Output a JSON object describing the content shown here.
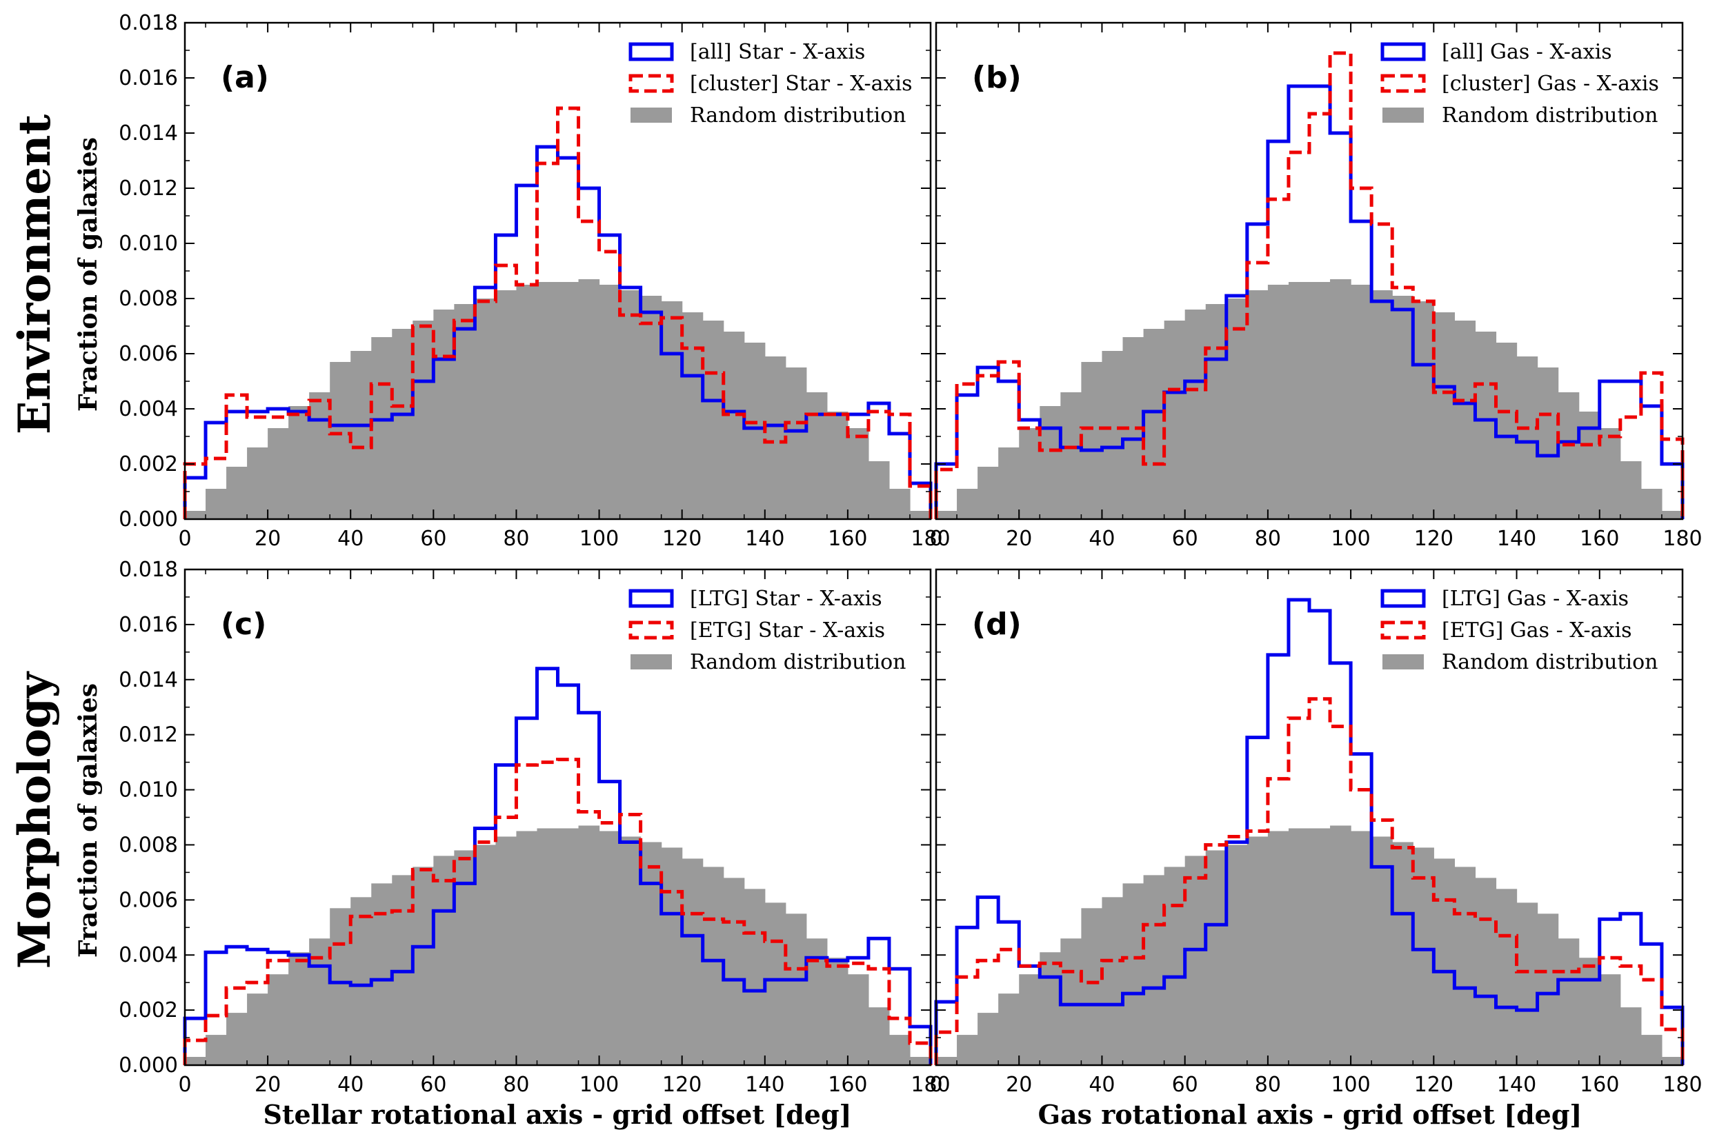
{
  "figure": {
    "row_labels": [
      "Environment",
      "Morphology"
    ],
    "y_label": "Fraction of galaxies",
    "x_labels": [
      "Stellar rotational axis - grid offset [deg]",
      "Gas rotational axis - grid offset [deg]"
    ]
  },
  "colors": {
    "blue": "#0000ee",
    "red": "#ee0000",
    "random": "#9a9a9a"
  },
  "chart_data": [
    {
      "type": "bar",
      "panel": "(a)",
      "xlim": [
        0,
        180
      ],
      "ylim": [
        0,
        0.018
      ],
      "x_ticks": [
        "0",
        "20",
        "40",
        "60",
        "80",
        "100",
        "120",
        "140",
        "160",
        "180"
      ],
      "y_ticks": [
        "0.000",
        "0.002",
        "0.004",
        "0.006",
        "0.008",
        "0.010",
        "0.012",
        "0.014",
        "0.016",
        "0.018"
      ],
      "bin_width": 5,
      "legend_position": "top-right",
      "series": [
        {
          "name": "[all] Star - X-axis",
          "style": "step-solid",
          "color": "#0000ee",
          "values": [
            0.0015,
            0.0035,
            0.0039,
            0.0039,
            0.004,
            0.0039,
            0.0036,
            0.0034,
            0.0034,
            0.0036,
            0.0038,
            0.005,
            0.0058,
            0.0069,
            0.0084,
            0.0103,
            0.0121,
            0.0135,
            0.0131,
            0.012,
            0.0103,
            0.0084,
            0.0075,
            0.006,
            0.0052,
            0.0043,
            0.0039,
            0.0033,
            0.0034,
            0.0032,
            0.0038,
            0.0038,
            0.0038,
            0.0042,
            0.0031,
            0.0013
          ]
        },
        {
          "name": "[cluster] Star - X-axis",
          "style": "step-dashed",
          "color": "#ee0000",
          "values": [
            0.002,
            0.0022,
            0.0045,
            0.0037,
            0.0037,
            0.0038,
            0.0043,
            0.0031,
            0.0026,
            0.0049,
            0.0041,
            0.007,
            0.0059,
            0.0072,
            0.0079,
            0.0092,
            0.0085,
            0.0129,
            0.0149,
            0.0108,
            0.0097,
            0.0074,
            0.0071,
            0.0073,
            0.0062,
            0.0053,
            0.0038,
            0.0035,
            0.0028,
            0.0035,
            0.0038,
            0.0038,
            0.003,
            0.0039,
            0.0038,
            0.0012
          ]
        },
        {
          "name": "Random distribution",
          "style": "filled",
          "color": "#9a9a9a",
          "values": [
            0.0003,
            0.0011,
            0.0019,
            0.0026,
            0.0033,
            0.0041,
            0.0046,
            0.0057,
            0.0061,
            0.0066,
            0.0069,
            0.0072,
            0.0076,
            0.0078,
            0.008,
            0.0083,
            0.0085,
            0.0086,
            0.0086,
            0.0087,
            0.0085,
            0.0083,
            0.0081,
            0.0079,
            0.0075,
            0.0072,
            0.0068,
            0.0064,
            0.0059,
            0.0055,
            0.0046,
            0.0039,
            0.0033,
            0.0021,
            0.0011,
            0.0003
          ]
        }
      ]
    },
    {
      "type": "bar",
      "panel": "(b)",
      "xlim": [
        0,
        180
      ],
      "ylim": [
        0,
        0.018
      ],
      "x_ticks": [
        "0",
        "20",
        "40",
        "60",
        "80",
        "100",
        "120",
        "140",
        "160",
        "180"
      ],
      "y_ticks": [],
      "bin_width": 5,
      "legend_position": "top-right",
      "series": [
        {
          "name": "[all] Gas - X-axis",
          "style": "step-solid",
          "color": "#0000ee",
          "values": [
            0.002,
            0.0045,
            0.0055,
            0.005,
            0.0036,
            0.0033,
            0.0026,
            0.0025,
            0.0026,
            0.0029,
            0.0039,
            0.0046,
            0.005,
            0.0058,
            0.0081,
            0.0107,
            0.0137,
            0.0157,
            0.0157,
            0.014,
            0.0108,
            0.0079,
            0.0076,
            0.0056,
            0.0048,
            0.0042,
            0.0036,
            0.003,
            0.0028,
            0.0023,
            0.0028,
            0.0033,
            0.005,
            0.005,
            0.0041,
            0.002
          ]
        },
        {
          "name": "[cluster] Gas - X-axis",
          "style": "step-dashed",
          "color": "#ee0000",
          "values": [
            0.0018,
            0.0049,
            0.0052,
            0.0057,
            0.0033,
            0.0025,
            0.0026,
            0.0033,
            0.0033,
            0.0033,
            0.002,
            0.0047,
            0.0047,
            0.0062,
            0.0069,
            0.0093,
            0.0116,
            0.0133,
            0.0147,
            0.0169,
            0.012,
            0.0107,
            0.0084,
            0.0079,
            0.0046,
            0.0043,
            0.0049,
            0.0039,
            0.0033,
            0.0038,
            0.0027,
            0.0027,
            0.003,
            0.0037,
            0.0053,
            0.0029
          ]
        },
        {
          "name": "Random distribution",
          "style": "filled",
          "color": "#9a9a9a",
          "values": [
            0.0003,
            0.0011,
            0.0019,
            0.0026,
            0.0033,
            0.0041,
            0.0046,
            0.0057,
            0.0061,
            0.0066,
            0.0069,
            0.0072,
            0.0076,
            0.0078,
            0.008,
            0.0083,
            0.0085,
            0.0086,
            0.0086,
            0.0087,
            0.0085,
            0.0083,
            0.0081,
            0.0079,
            0.0075,
            0.0072,
            0.0068,
            0.0064,
            0.0059,
            0.0055,
            0.0046,
            0.0039,
            0.0033,
            0.0021,
            0.0011,
            0.0003
          ]
        }
      ]
    },
    {
      "type": "bar",
      "panel": "(c)",
      "xlim": [
        0,
        180
      ],
      "ylim": [
        0,
        0.018
      ],
      "x_ticks": [
        "0",
        "20",
        "40",
        "60",
        "80",
        "100",
        "120",
        "140",
        "160",
        "180"
      ],
      "y_ticks": [
        "0.000",
        "0.002",
        "0.004",
        "0.006",
        "0.008",
        "0.010",
        "0.012",
        "0.014",
        "0.016",
        "0.018"
      ],
      "bin_width": 5,
      "legend_position": "top-right",
      "series": [
        {
          "name": "[LTG] Star - X-axis",
          "style": "step-solid",
          "color": "#0000ee",
          "values": [
            0.0017,
            0.0041,
            0.0043,
            0.0042,
            0.0041,
            0.004,
            0.0036,
            0.003,
            0.0029,
            0.0031,
            0.0034,
            0.0043,
            0.0056,
            0.0066,
            0.0086,
            0.0109,
            0.0126,
            0.0144,
            0.0138,
            0.0128,
            0.0103,
            0.0081,
            0.0066,
            0.0055,
            0.0047,
            0.0038,
            0.0031,
            0.0027,
            0.0031,
            0.0031,
            0.0039,
            0.0038,
            0.0039,
            0.0046,
            0.0035,
            0.0014
          ]
        },
        {
          "name": "[ETG] Star - X-axis",
          "style": "step-dashed",
          "color": "#ee0000",
          "values": [
            0.0009,
            0.0018,
            0.0028,
            0.003,
            0.0038,
            0.0038,
            0.0039,
            0.0044,
            0.0054,
            0.0055,
            0.0056,
            0.0071,
            0.0067,
            0.0075,
            0.0081,
            0.009,
            0.0109,
            0.011,
            0.0111,
            0.0092,
            0.0088,
            0.0091,
            0.0072,
            0.0063,
            0.0055,
            0.0053,
            0.0052,
            0.0048,
            0.0045,
            0.0035,
            0.0038,
            0.0036,
            0.0037,
            0.0035,
            0.0017,
            0.0008
          ]
        },
        {
          "name": "Random distribution",
          "style": "filled",
          "color": "#9a9a9a",
          "values": [
            0.0003,
            0.0011,
            0.0019,
            0.0026,
            0.0033,
            0.0041,
            0.0046,
            0.0057,
            0.0061,
            0.0066,
            0.0069,
            0.0072,
            0.0076,
            0.0078,
            0.008,
            0.0083,
            0.0085,
            0.0086,
            0.0086,
            0.0087,
            0.0085,
            0.0083,
            0.0081,
            0.0079,
            0.0075,
            0.0072,
            0.0068,
            0.0064,
            0.0059,
            0.0055,
            0.0046,
            0.0039,
            0.0033,
            0.0021,
            0.0011,
            0.0003
          ]
        }
      ]
    },
    {
      "type": "bar",
      "panel": "(d)",
      "xlim": [
        0,
        180
      ],
      "ylim": [
        0,
        0.018
      ],
      "x_ticks": [
        "0",
        "20",
        "40",
        "60",
        "80",
        "100",
        "120",
        "140",
        "160",
        "180"
      ],
      "y_ticks": [],
      "bin_width": 5,
      "legend_position": "top-right",
      "series": [
        {
          "name": "[LTG] Gas - X-axis",
          "style": "step-solid",
          "color": "#0000ee",
          "values": [
            0.0023,
            0.005,
            0.0061,
            0.0052,
            0.0036,
            0.0032,
            0.0022,
            0.0022,
            0.0022,
            0.0026,
            0.0028,
            0.0032,
            0.0042,
            0.0051,
            0.0081,
            0.0119,
            0.0149,
            0.0169,
            0.0165,
            0.0146,
            0.0113,
            0.0072,
            0.0055,
            0.0042,
            0.0034,
            0.0028,
            0.0025,
            0.0021,
            0.002,
            0.0026,
            0.0031,
            0.0031,
            0.0053,
            0.0055,
            0.0044,
            0.0021
          ]
        },
        {
          "name": "[ETG] Gas - X-axis",
          "style": "step-dashed",
          "color": "#ee0000",
          "values": [
            0.0012,
            0.0032,
            0.0038,
            0.0042,
            0.0036,
            0.0037,
            0.0034,
            0.003,
            0.0038,
            0.0039,
            0.0051,
            0.0058,
            0.0068,
            0.008,
            0.0083,
            0.0085,
            0.0104,
            0.0126,
            0.0133,
            0.0123,
            0.01,
            0.0089,
            0.0079,
            0.0068,
            0.006,
            0.0055,
            0.0053,
            0.0047,
            0.0034,
            0.0034,
            0.0034,
            0.0036,
            0.0039,
            0.0036,
            0.0031,
            0.0013
          ]
        },
        {
          "name": "Random distribution",
          "style": "filled",
          "color": "#9a9a9a",
          "values": [
            0.0003,
            0.0011,
            0.0019,
            0.0026,
            0.0033,
            0.0041,
            0.0046,
            0.0057,
            0.0061,
            0.0066,
            0.0069,
            0.0072,
            0.0076,
            0.0078,
            0.008,
            0.0083,
            0.0085,
            0.0086,
            0.0086,
            0.0087,
            0.0085,
            0.0083,
            0.0081,
            0.0079,
            0.0075,
            0.0072,
            0.0068,
            0.0064,
            0.0059,
            0.0055,
            0.0046,
            0.0039,
            0.0033,
            0.0021,
            0.0011,
            0.0003
          ]
        }
      ]
    }
  ]
}
